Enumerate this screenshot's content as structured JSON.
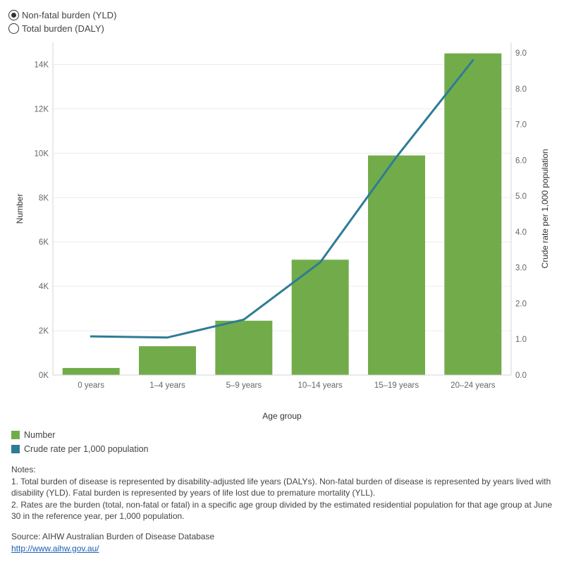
{
  "controls": {
    "options": [
      {
        "label": "Non-fatal burden (YLD)",
        "checked": true
      },
      {
        "label": "Total burden (DALY)",
        "checked": false
      }
    ]
  },
  "colors": {
    "bar": "#72ac4a",
    "line": "#2e7c95",
    "grid": "#ececec",
    "axis": "#d6d6d6"
  },
  "chart_data": {
    "type": "bar",
    "categories": [
      "0 years",
      "1–4 years",
      "5–9 years",
      "10–14 years",
      "15–19 years",
      "20–24 years"
    ],
    "series": [
      {
        "name": "Number",
        "axis": "left",
        "type": "bar",
        "values": [
          320,
          1300,
          2450,
          5200,
          9900,
          14500
        ]
      },
      {
        "name": "Crude rate per 1,000 population",
        "axis": "right",
        "type": "line",
        "values": [
          1.08,
          1.05,
          1.55,
          3.15,
          6.1,
          8.8
        ]
      }
    ],
    "xlabel": "Age group",
    "ylabel": "Number",
    "y2label": "Crude rate per 1,000 population",
    "ylim": [
      0,
      15000
    ],
    "y2lim": [
      0,
      9.3
    ],
    "yticks": [
      0,
      2000,
      4000,
      6000,
      8000,
      10000,
      12000,
      14000
    ],
    "ytick_labels": [
      "0K",
      "2K",
      "4K",
      "6K",
      "8K",
      "10K",
      "12K",
      "14K"
    ],
    "y2ticks": [
      0,
      1,
      2,
      3,
      4,
      5,
      6,
      7,
      8,
      9
    ],
    "y2tick_labels": [
      "0.0",
      "1.0",
      "2.0",
      "3.0",
      "4.0",
      "5.0",
      "6.0",
      "7.0",
      "8.0",
      "9.0"
    ],
    "grid": true,
    "legend": "bottom-left"
  },
  "legend": {
    "items": [
      {
        "label": "Number",
        "color": "#72ac4a"
      },
      {
        "label": "Crude rate per 1,000 population",
        "color": "#2e7c95"
      }
    ]
  },
  "notes": {
    "heading": "Notes:",
    "items": [
      "1. Total burden of disease is represented by disability-adjusted life years (DALYs). Non-fatal burden of disease is represented by years lived with disability (YLD). Fatal burden is represented by years of life lost due to premature mortality (YLL).",
      "2. Rates are the burden (total, non-fatal or fatal) in a specific age group divided by the estimated residential population for that age group at June 30 in the reference year, per 1,000 population."
    ]
  },
  "source": {
    "text": "Source: AIHW Australian Burden of Disease Database",
    "link": "http://www.aihw.gov.au/"
  }
}
